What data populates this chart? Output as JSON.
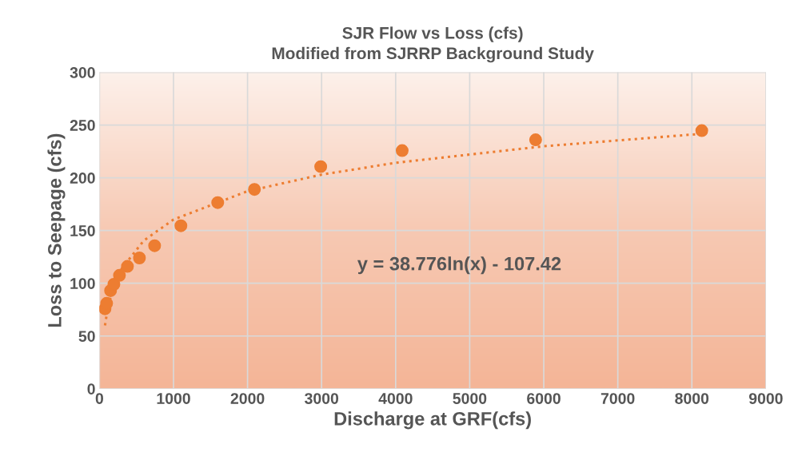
{
  "chart_data": {
    "type": "scatter",
    "title": "SJR Flow vs Loss (cfs)\nModified from SJRRP Background Study",
    "xlabel": "Discharge at GRF(cfs)",
    "ylabel": "Loss to Seepage (cfs)",
    "xlim": [
      0,
      9000
    ],
    "xticks": [
      0,
      1000,
      2000,
      3000,
      4000,
      5000,
      6000,
      7000,
      8000,
      9000
    ],
    "ylim": [
      0,
      300
    ],
    "yticks": [
      0,
      50,
      100,
      150,
      200,
      250,
      300
    ],
    "grid": true,
    "series": [
      {
        "marker": "circle",
        "color": "#ed7d31",
        "x": [
          75,
          97,
          150,
          195,
          270,
          378,
          540,
          745,
          1100,
          1597,
          2093,
          2988,
          4088,
          5890,
          8134
        ],
        "values": [
          75.8,
          81,
          93,
          99,
          107.5,
          116,
          124,
          135.6,
          154.5,
          176.5,
          189,
          210.6,
          225.8,
          236,
          244.7
        ]
      },
      {
        "type": "line",
        "line_style": "dotted",
        "color": "#ed7d31",
        "x": [
          75,
          100,
          150,
          200,
          300,
          600,
          1000,
          2000,
          3000,
          4000,
          6000,
          8150
        ],
        "values": [
          60.0,
          71.2,
          86.9,
          98.0,
          113.8,
          140.6,
          160.4,
          187.3,
          203.0,
          214.2,
          229.9,
          241.8
        ]
      }
    ],
    "annotations": [
      "y = 38.776ln(x) - 107.42"
    ]
  }
}
